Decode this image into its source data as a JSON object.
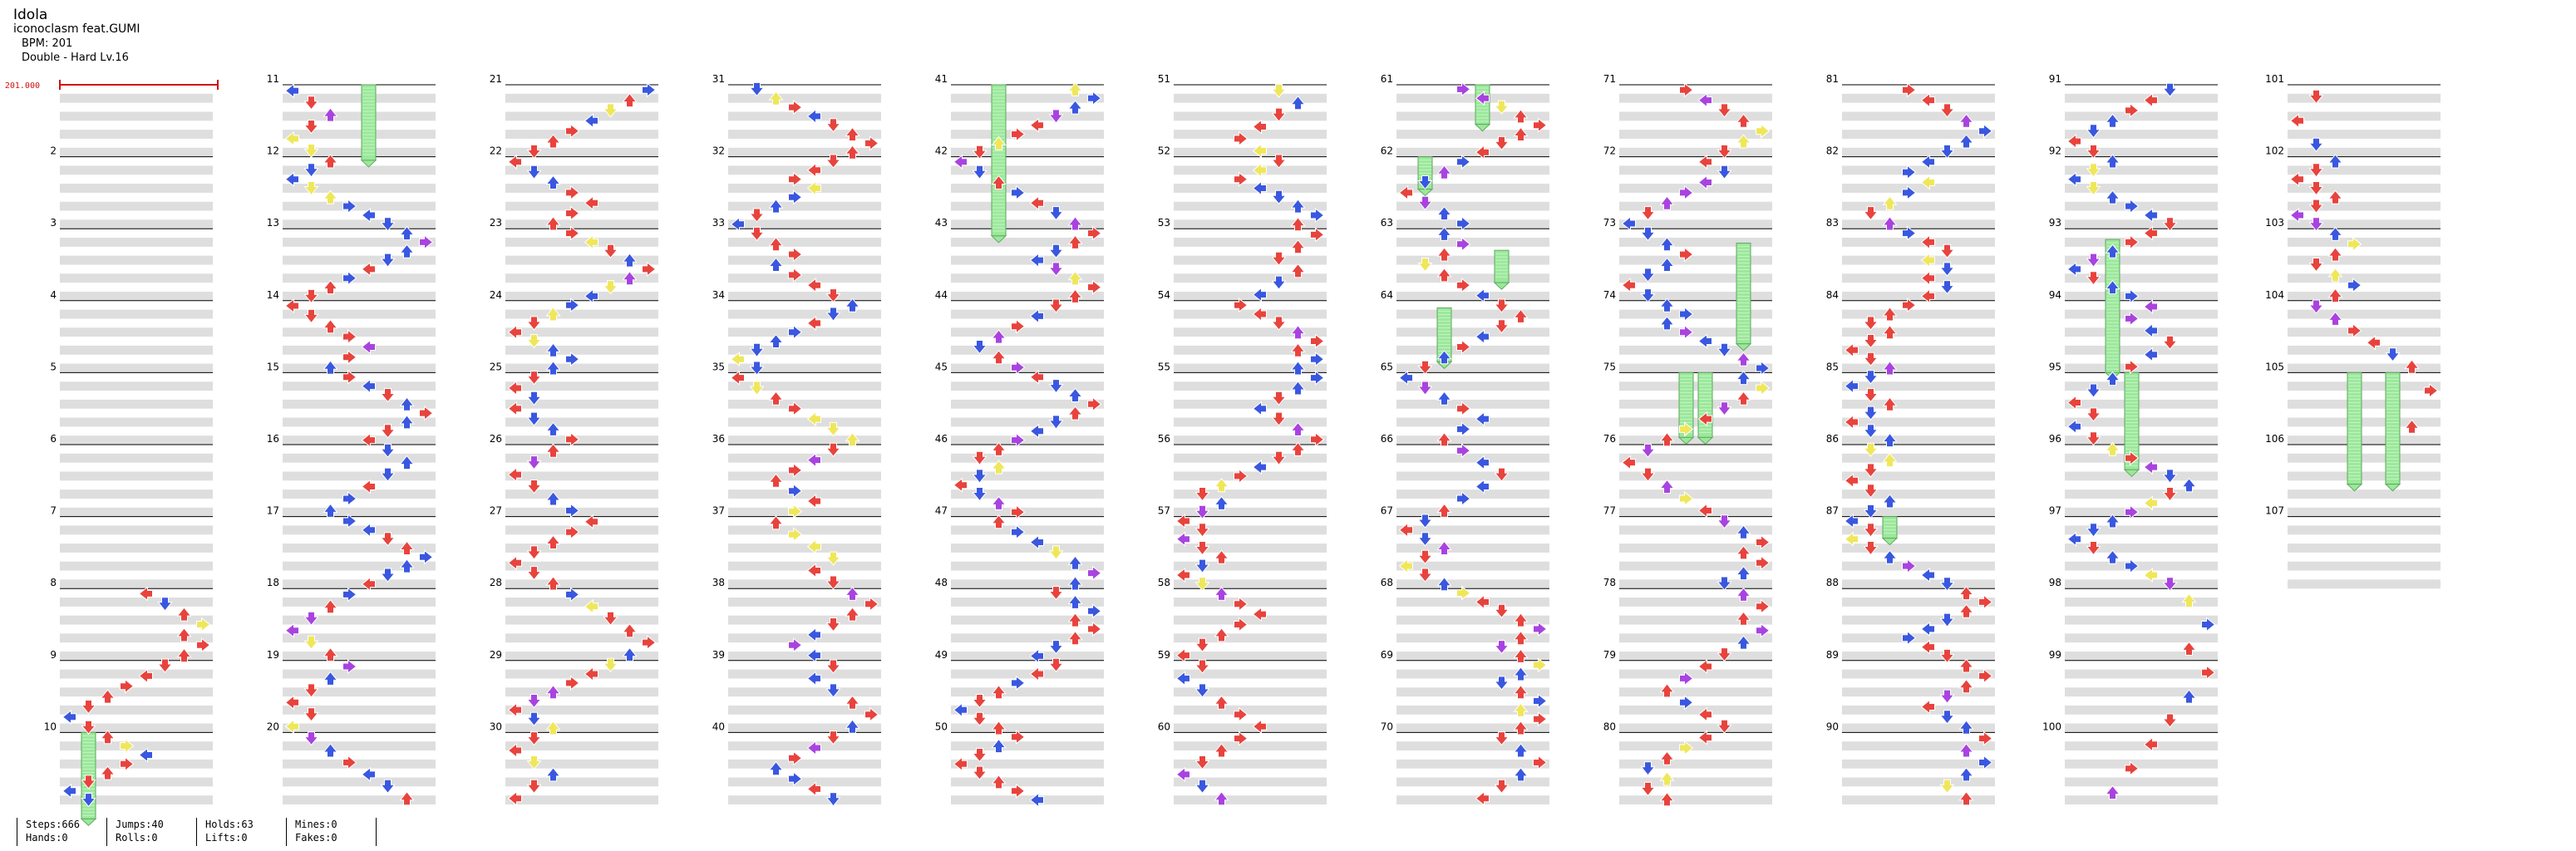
{
  "song": {
    "title": "Idola",
    "artist": "iconoclasm feat.GUMI",
    "bpm_text": "BPM: 201",
    "chart_text": "Double - Hard Lv.16"
  },
  "bpm_marker": {
    "value": "201.000"
  },
  "measure_count": 107,
  "colors": {
    "red": "#e8433d",
    "blue": "#3a57e0",
    "yellow": "#efe75a",
    "purple": "#a943e0",
    "hold": "#9be89b",
    "hold_border": "#5faa5f",
    "band": "#dedede",
    "marker": "#d01010"
  },
  "lanes": [
    "left-1",
    "down-1",
    "up-1",
    "right-1",
    "left-2",
    "down-2",
    "up-2",
    "right-2"
  ],
  "holds": [
    {
      "measure": 10,
      "lane": 1,
      "start": 0.0,
      "len": 1.2
    },
    {
      "measure": 11,
      "lane": 4,
      "start": 0.0,
      "len": 1.05
    },
    {
      "measure": 41,
      "lane": 2,
      "start": 0.0,
      "len": 2.1
    },
    {
      "measure": 61,
      "lane": 4,
      "start": 0.0,
      "len": 0.55
    },
    {
      "measure": 62,
      "lane": 1,
      "start": 0.0,
      "len": 0.45
    },
    {
      "measure": 63,
      "lane": 5,
      "start": 0.3,
      "len": 0.45
    },
    {
      "measure": 64,
      "lane": 2,
      "start": 0.1,
      "len": 0.75
    },
    {
      "measure": 73,
      "lane": 6,
      "start": 0.2,
      "len": 1.4
    },
    {
      "measure": 75,
      "lane": 3,
      "start": 0.0,
      "len": 0.9
    },
    {
      "measure": 75,
      "lane": 4,
      "start": 0.0,
      "len": 0.9
    },
    {
      "measure": 87,
      "lane": 2,
      "start": 0.0,
      "len": 0.3
    },
    {
      "measure": 93,
      "lane": 2,
      "start": 0.15,
      "len": 1.85
    },
    {
      "measure": 95,
      "lane": 3,
      "start": 0.0,
      "len": 1.35
    },
    {
      "measure": 105,
      "lane": 3,
      "start": 0.0,
      "len": 1.55
    },
    {
      "measure": 105,
      "lane": 5,
      "start": 0.0,
      "len": 1.55
    }
  ],
  "stats": {
    "steps": "Steps:666",
    "hands": "Hands:0",
    "jumps": "Jumps:40",
    "rolls": "Rolls:0",
    "holds": "Holds:63",
    "lifts": "Lifts:0",
    "mines": "Mines:0",
    "fakes": "Fakes:0"
  }
}
